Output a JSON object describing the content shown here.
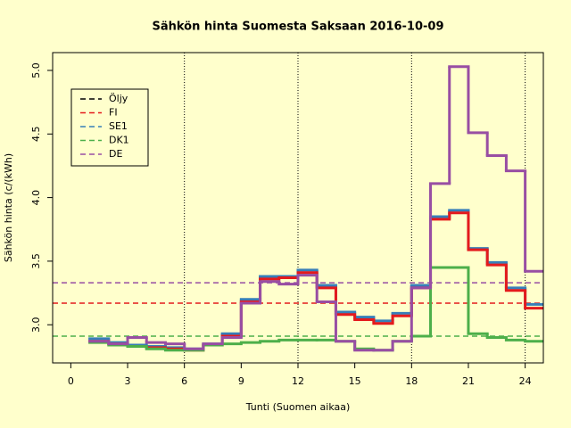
{
  "chart_data": {
    "type": "step",
    "title": "Sähkön hinta Suomesta Saksaan 2016-10-09",
    "x_label": "Tunti (Suomen aikaa)",
    "y_label": "Sähkön hinta (c/(kWh)",
    "x": [
      1,
      2,
      3,
      4,
      5,
      6,
      7,
      8,
      9,
      10,
      11,
      12,
      13,
      14,
      15,
      16,
      17,
      18,
      19,
      20,
      21,
      22,
      23,
      24
    ],
    "series": [
      {
        "name": "Öljy",
        "color": "#000000",
        "values": [
          null,
          null,
          null,
          null,
          null,
          null,
          null,
          null,
          null,
          null,
          null,
          null,
          null,
          null,
          null,
          null,
          null,
          null,
          null,
          null,
          null,
          null,
          null,
          null
        ]
      },
      {
        "name": "SE1",
        "color": "#377eb8",
        "reference": 3.17,
        "values": [
          2.89,
          2.86,
          2.84,
          2.83,
          2.82,
          2.81,
          2.85,
          2.93,
          3.2,
          3.38,
          3.38,
          3.43,
          3.31,
          3.1,
          3.06,
          3.03,
          3.09,
          3.31,
          3.85,
          3.9,
          3.6,
          3.49,
          3.29,
          3.16
        ]
      },
      {
        "name": "FI",
        "color": "#e41a1c",
        "reference": 3.17,
        "values": [
          2.87,
          2.85,
          2.83,
          2.82,
          2.81,
          2.8,
          2.84,
          2.91,
          3.18,
          3.36,
          3.37,
          3.41,
          3.29,
          3.08,
          3.04,
          3.01,
          3.07,
          3.29,
          3.83,
          3.88,
          3.59,
          3.47,
          3.27,
          3.13
        ]
      },
      {
        "name": "DK1",
        "color": "#4daf4a",
        "reference": 2.91,
        "values": [
          2.86,
          2.84,
          2.83,
          2.81,
          2.8,
          2.8,
          2.84,
          2.85,
          2.86,
          2.87,
          2.88,
          2.88,
          2.88,
          2.87,
          2.81,
          2.8,
          2.87,
          2.91,
          3.45,
          3.45,
          2.93,
          2.9,
          2.88,
          2.87
        ]
      },
      {
        "name": "DE",
        "color": "#984ea3",
        "reference": 3.33,
        "values": [
          2.87,
          2.85,
          2.9,
          2.86,
          2.85,
          2.81,
          2.85,
          2.9,
          3.17,
          3.34,
          3.32,
          3.39,
          3.18,
          2.87,
          2.8,
          2.8,
          2.87,
          3.29,
          4.11,
          5.03,
          4.51,
          4.33,
          4.21,
          3.42
        ]
      }
    ],
    "legend_order": [
      0,
      2,
      1,
      3,
      4
    ],
    "xlim": [
      -0.96,
      24.96
    ],
    "ylim": [
      2.7,
      5.14
    ],
    "xticks": [
      0,
      3,
      6,
      9,
      12,
      15,
      18,
      21,
      24
    ],
    "yticks": [
      {
        "value": 3,
        "label": "3.0"
      },
      3.5,
      {
        "value": 4,
        "label": "4.0"
      },
      4.5,
      {
        "value": 5,
        "label": "5.0"
      }
    ],
    "vlines": [
      6,
      12,
      18,
      24
    ],
    "legend": "top-left"
  }
}
